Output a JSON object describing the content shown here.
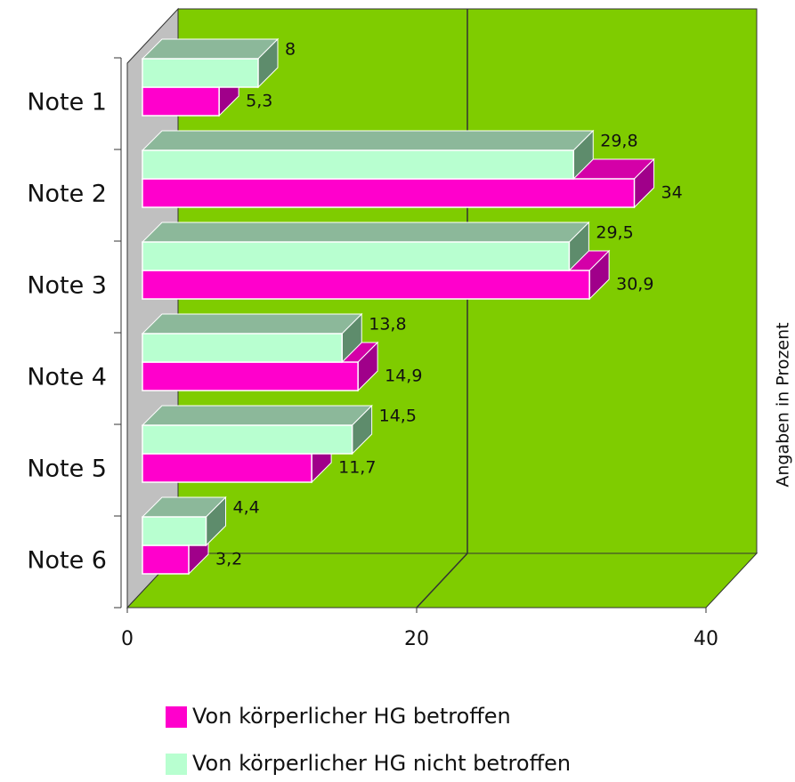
{
  "chart_data": {
    "type": "bar3d-horizontal",
    "categories": [
      "Note 1",
      "Note 2",
      "Note 3",
      "Note 4",
      "Note 5",
      "Note 6"
    ],
    "series": [
      {
        "name": "Von körperlicher HG betroffen",
        "color": "#ff00cc",
        "values": [
          5.3,
          34,
          30.9,
          14.9,
          11.7,
          3.2
        ],
        "value_labels": [
          "5,3",
          "34",
          "30,9",
          "14,9",
          "11,7",
          "3,2"
        ]
      },
      {
        "name": "Von körperlicher HG nicht betroffen",
        "color": "#b8ffd0",
        "values": [
          8,
          29.8,
          29.5,
          13.8,
          14.5,
          4.4
        ],
        "value_labels": [
          "8",
          "29,8",
          "29,5",
          "13,8",
          "14,5",
          "4,4"
        ]
      }
    ],
    "xlim": [
      0,
      40
    ],
    "xticks": [
      0,
      20,
      40
    ],
    "axis_label": "Angaben in Prozent",
    "background_color": "#7fcc00",
    "grid": true
  }
}
